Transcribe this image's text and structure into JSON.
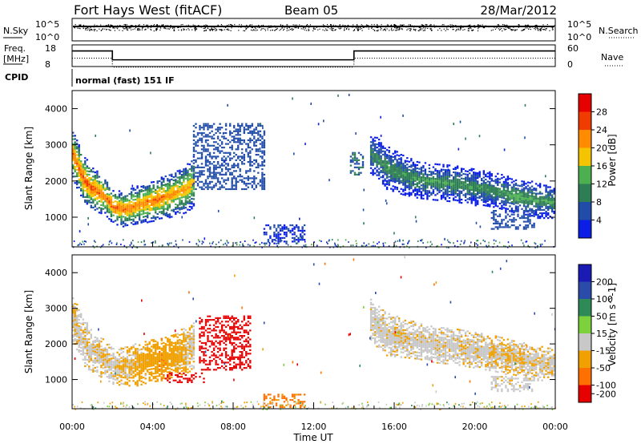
{
  "header": {
    "title": "Fort Hays West (fitACF)",
    "beam": "Beam 05",
    "date": "28/Mar/2012"
  },
  "top_panels": {
    "nsky_label": "N.Sky",
    "nsearch_label": "N.Search",
    "noise_ticks": [
      "10^5",
      "10^0"
    ],
    "freq_label_line1": "Freq.",
    "freq_label_line2": "[MHz]",
    "freq_ticks": [
      "18",
      "8"
    ],
    "nave_label": "Nave",
    "nave_ticks": [
      "60",
      "0"
    ],
    "cpid_label": "CPID",
    "cpid_text": "normal (fast) 151 IF",
    "freq_steps": [
      {
        "t": 0.0,
        "f": 15.2
      },
      {
        "t": 2.0,
        "f": 11.1
      },
      {
        "t": 14.0,
        "f": 15.2
      },
      {
        "t": 24.0,
        "f": 15.2
      }
    ]
  },
  "chart_data": [
    {
      "type": "heatmap",
      "ylabel": "Slant Range [km]",
      "xlim": [
        0,
        24
      ],
      "ylim": [
        180,
        4500
      ],
      "yticks": [
        "1000",
        "2000",
        "3000",
        "4000"
      ],
      "colorbar_label": "Power [dB]",
      "colorbar_ticks": [
        "4",
        "8",
        "12",
        "16",
        "20",
        "24",
        "28"
      ],
      "color_scale": [
        "#0a1ee6",
        "#214da8",
        "#2e7d55",
        "#4caf50",
        "#f5c400",
        "#ff8c00",
        "#f03c00",
        "#e60000"
      ],
      "echo_bands": [
        {
          "t": [
            0.0,
            0.5,
            1.0,
            1.6,
            2.0,
            2.6,
            3.2,
            3.8,
            4.4,
            5.0,
            5.6,
            6.0
          ],
          "center": [
            2800,
            2100,
            1800,
            1600,
            1300,
            1250,
            1350,
            1450,
            1550,
            1650,
            1800,
            2000
          ],
          "width": [
            700,
            650,
            600,
            500,
            450,
            500,
            550,
            550,
            600,
            600,
            650,
            700
          ],
          "peak": [
            26,
            28,
            27,
            26,
            28,
            26,
            25,
            26,
            26,
            24,
            24,
            22
          ]
        },
        {
          "t": [
            14.8,
            15.6,
            16.4,
            17.2,
            18.0,
            19.0,
            20.0,
            21.0,
            22.0,
            23.0,
            24.0
          ],
          "center": [
            2800,
            2400,
            2200,
            2050,
            2000,
            1950,
            1850,
            1750,
            1600,
            1500,
            1450
          ],
          "width": [
            600,
            600,
            550,
            500,
            500,
            500,
            500,
            500,
            500,
            500,
            450
          ],
          "peak": [
            12,
            14,
            14,
            14,
            14,
            14,
            14,
            13,
            16,
            14,
            14
          ]
        }
      ],
      "patches": [
        {
          "t": [
            6.0,
            9.5
          ],
          "r": [
            1800,
            3600
          ],
          "v": 8
        },
        {
          "t": [
            13.8,
            14.4
          ],
          "r": [
            2200,
            2800
          ],
          "v": 10
        },
        {
          "t": [
            20.8,
            23.0
          ],
          "r": [
            700,
            1200
          ],
          "v": 8
        },
        {
          "t": [
            9.5,
            11.5
          ],
          "r": [
            300,
            800
          ],
          "v": 6
        }
      ]
    },
    {
      "type": "heatmap",
      "ylabel": "Slant Range [km]",
      "xlabel": "Time UT",
      "xlim": [
        0,
        24
      ],
      "ylim": [
        180,
        4500
      ],
      "yticks": [
        "1000",
        "2000",
        "3000",
        "4000"
      ],
      "xticks": [
        "00:00",
        "04:00",
        "08:00",
        "12:00",
        "16:00",
        "20:00",
        "00:00"
      ],
      "colorbar_label": "Velocity [m s^-1]",
      "colorbar_ticks": [
        "200",
        "100",
        "50",
        "15",
        "-15",
        "-50",
        "-100",
        "-200"
      ],
      "color_scale": [
        "#1a1ab4",
        "#2a4ba8",
        "#2e8b57",
        "#7cd13c",
        "#c8c8c8",
        "#f0a000",
        "#ff7000",
        "#e60000"
      ],
      "echo_bands": [
        {
          "t": [
            0.0,
            0.5,
            1.0,
            1.6,
            2.0,
            2.6,
            3.2,
            3.8,
            4.4,
            5.0,
            5.6,
            6.0
          ],
          "center": [
            2700,
            2100,
            1800,
            1600,
            1400,
            1400,
            1450,
            1550,
            1600,
            1700,
            1850,
            2000
          ],
          "width": [
            700,
            650,
            600,
            550,
            500,
            550,
            600,
            600,
            600,
            600,
            650,
            700
          ],
          "value": [
            -10,
            -5,
            -8,
            -15,
            -5,
            -20,
            -25,
            -30,
            -40,
            -30,
            -20,
            -10
          ]
        },
        {
          "t": [
            14.8,
            15.6,
            16.4,
            17.2,
            18.0,
            19.0,
            20.0,
            21.0,
            22.0,
            23.0,
            24.0
          ],
          "center": [
            2700,
            2300,
            2200,
            2100,
            2000,
            1950,
            1850,
            1750,
            1600,
            1500,
            1450
          ],
          "width": [
            600,
            600,
            550,
            500,
            500,
            500,
            500,
            500,
            500,
            500,
            450
          ],
          "value": [
            -5,
            -5,
            -8,
            -5,
            -3,
            -5,
            -8,
            -10,
            -15,
            -10,
            -10
          ]
        }
      ],
      "patches": [
        {
          "t": [
            6.3,
            8.8
          ],
          "r": [
            1300,
            2800
          ],
          "v": -220
        },
        {
          "t": [
            4.6,
            6.5
          ],
          "r": [
            950,
            1200
          ],
          "v": -180
        },
        {
          "t": [
            20.8,
            23.0
          ],
          "r": [
            700,
            1100
          ],
          "v": -5
        },
        {
          "t": [
            9.5,
            11.5
          ],
          "r": [
            250,
            600
          ],
          "v": -60
        }
      ]
    }
  ]
}
